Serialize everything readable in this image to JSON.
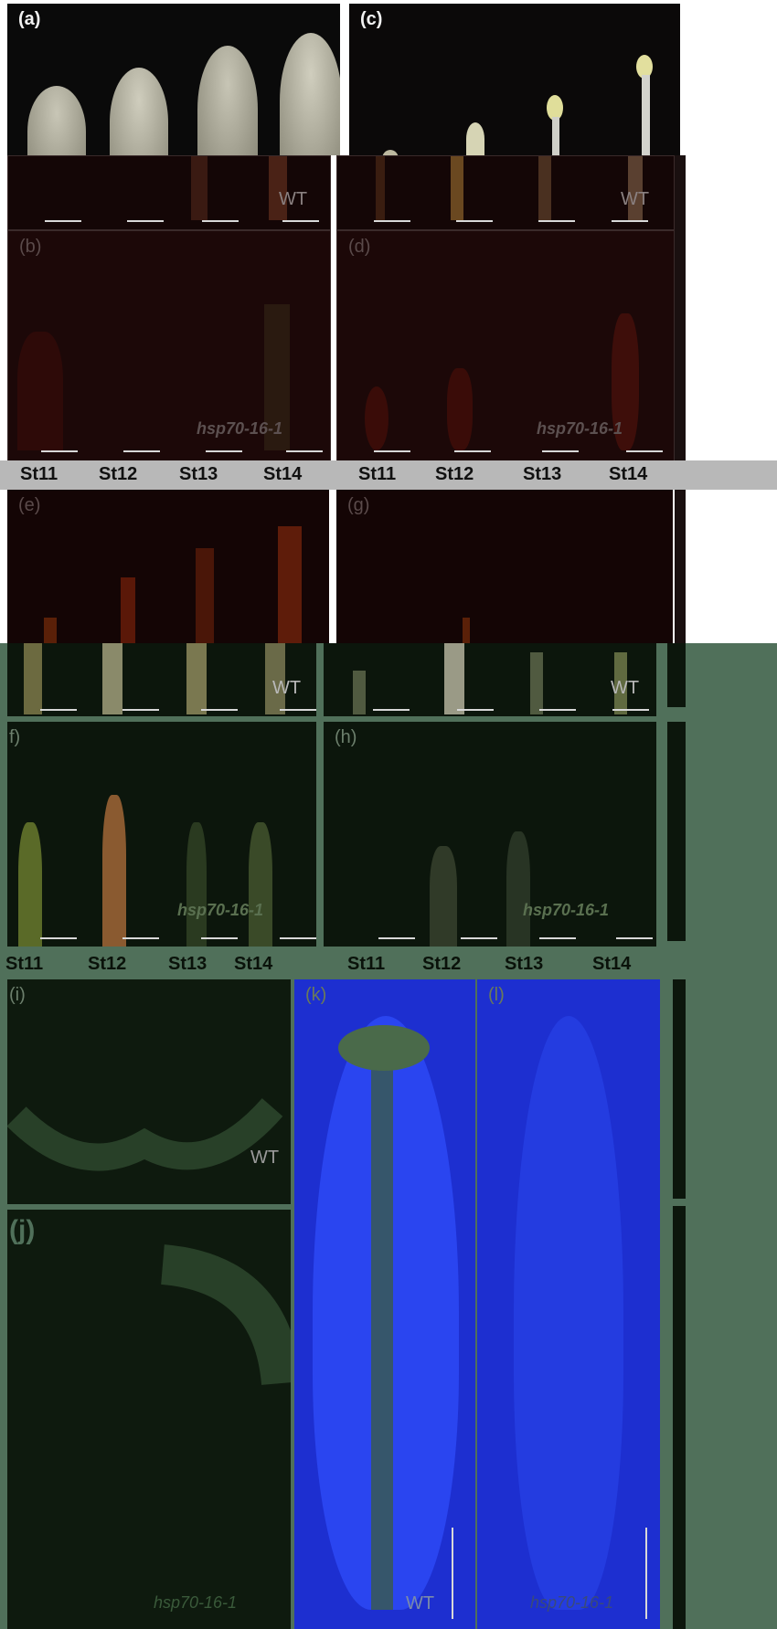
{
  "panels": {
    "a": {
      "label": "(a)"
    },
    "b": {
      "label": "(b)",
      "genotype": "hsp70-16-1"
    },
    "c": {
      "label": "(c)"
    },
    "d": {
      "label": "(d)",
      "genotype": "hsp70-16-1"
    },
    "e": {
      "label": "(e)"
    },
    "f": {
      "label": "f)",
      "genotype": "hsp70-16-1"
    },
    "g": {
      "label": "(g)"
    },
    "h": {
      "label": "(h)",
      "genotype": "hsp70-16-1"
    },
    "i": {
      "label": "(i)",
      "wt": "WT"
    },
    "j": {
      "label": "(j)",
      "genotype": "hsp70-16-1"
    },
    "k": {
      "label": "(k)",
      "wt": "WT"
    },
    "l": {
      "label": "(l)",
      "genotype": "hsp70-16-1"
    }
  },
  "wt_label": "WT",
  "stages_top": [
    "St11",
    "St12",
    "St13",
    "St14",
    "St11",
    "St12",
    "St13",
    "St14"
  ],
  "stages_mid": [
    "St11",
    "St12",
    "St13",
    "St14",
    "St11",
    "St12",
    "St13",
    "St14"
  ],
  "colors": {
    "dark_red_bg": "#1a0707",
    "dark_green_bg": "#0d1a0d",
    "green_frame": "#50705a",
    "blue_bg": "#1d2fd0"
  }
}
